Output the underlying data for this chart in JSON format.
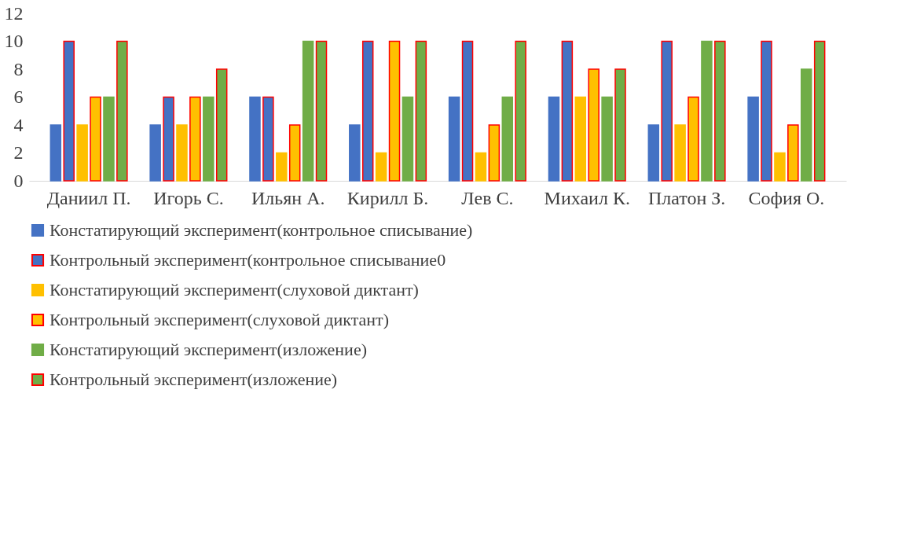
{
  "chart_data": {
    "type": "bar",
    "categories": [
      "Даниил П.",
      "Игорь С.",
      "Ильян А.",
      "Кирилл Б.",
      "Лев С.",
      "Михаил К.",
      "Платон З.",
      "София О."
    ],
    "series": [
      {
        "name": "Констатирующий эксперимент(контрольное списывание)",
        "color": "#4472c4",
        "values": [
          4,
          4,
          6,
          4,
          6,
          6,
          4,
          6
        ]
      },
      {
        "name": "Контрольный эксперимент(контрольное списывание0",
        "color": "#4472c4",
        "values": [
          10,
          6,
          6,
          10,
          10,
          10,
          10,
          10
        ]
      },
      {
        "name": "Констатирующий эксперимент(слуховой диктант)",
        "color": "#ffc000",
        "values": [
          4,
          4,
          2,
          2,
          2,
          6,
          4,
          2
        ]
      },
      {
        "name": "Контрольный эксперимент(слуховой диктант)",
        "color": "#ffc000",
        "values": [
          6,
          6,
          4,
          10,
          4,
          8,
          6,
          4
        ]
      },
      {
        "name": "Констатирующий эксперимент(изложение)",
        "color": "#70ad47",
        "values": [
          6,
          6,
          10,
          6,
          6,
          6,
          10,
          8
        ]
      },
      {
        "name": "Контрольный эксперимент(изложение)",
        "color": "#70ad47",
        "values": [
          10,
          8,
          10,
          10,
          10,
          8,
          10,
          10
        ]
      }
    ],
    "ylim": [
      0,
      12
    ],
    "yticks": [
      0,
      2,
      4,
      6,
      8,
      10,
      12
    ],
    "grid": false,
    "legend": "bottom"
  }
}
